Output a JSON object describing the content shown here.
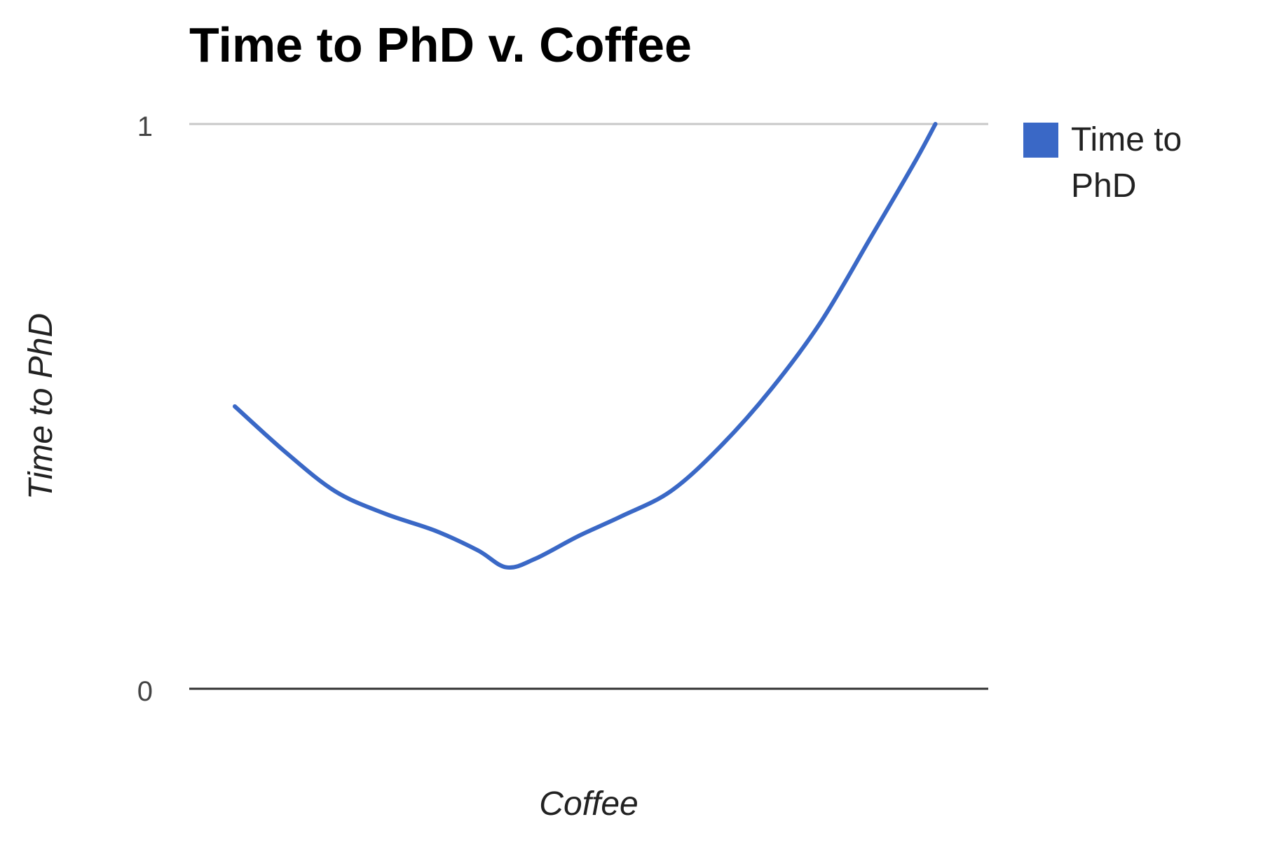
{
  "chart_data": {
    "type": "line",
    "title": "Time to PhD v. Coffee",
    "xlabel": "Coffee",
    "ylabel": "Time to PhD",
    "ylim": [
      0,
      1
    ],
    "yticks": [
      "0",
      "1"
    ],
    "grid": true,
    "legend": {
      "position": "right",
      "entries": [
        {
          "label_lines": [
            "Time to",
            "PhD"
          ],
          "color": "#3a68c6"
        }
      ]
    },
    "series": [
      {
        "name": "Time to PhD",
        "color": "#3a68c6",
        "points": [
          {
            "x": 0.0,
            "y": 0.5
          },
          {
            "x": 0.07,
            "y": 0.42
          },
          {
            "x": 0.14,
            "y": 0.35
          },
          {
            "x": 0.21,
            "y": 0.31
          },
          {
            "x": 0.28,
            "y": 0.28
          },
          {
            "x": 0.34,
            "y": 0.245
          },
          {
            "x": 0.38,
            "y": 0.215
          },
          {
            "x": 0.42,
            "y": 0.23
          },
          {
            "x": 0.48,
            "y": 0.27
          },
          {
            "x": 0.54,
            "y": 0.305
          },
          {
            "x": 0.61,
            "y": 0.35
          },
          {
            "x": 0.68,
            "y": 0.43
          },
          {
            "x": 0.75,
            "y": 0.53
          },
          {
            "x": 0.82,
            "y": 0.65
          },
          {
            "x": 0.89,
            "y": 0.8
          },
          {
            "x": 0.95,
            "y": 0.93
          },
          {
            "x": 0.98,
            "y": 1.0
          }
        ]
      }
    ]
  }
}
